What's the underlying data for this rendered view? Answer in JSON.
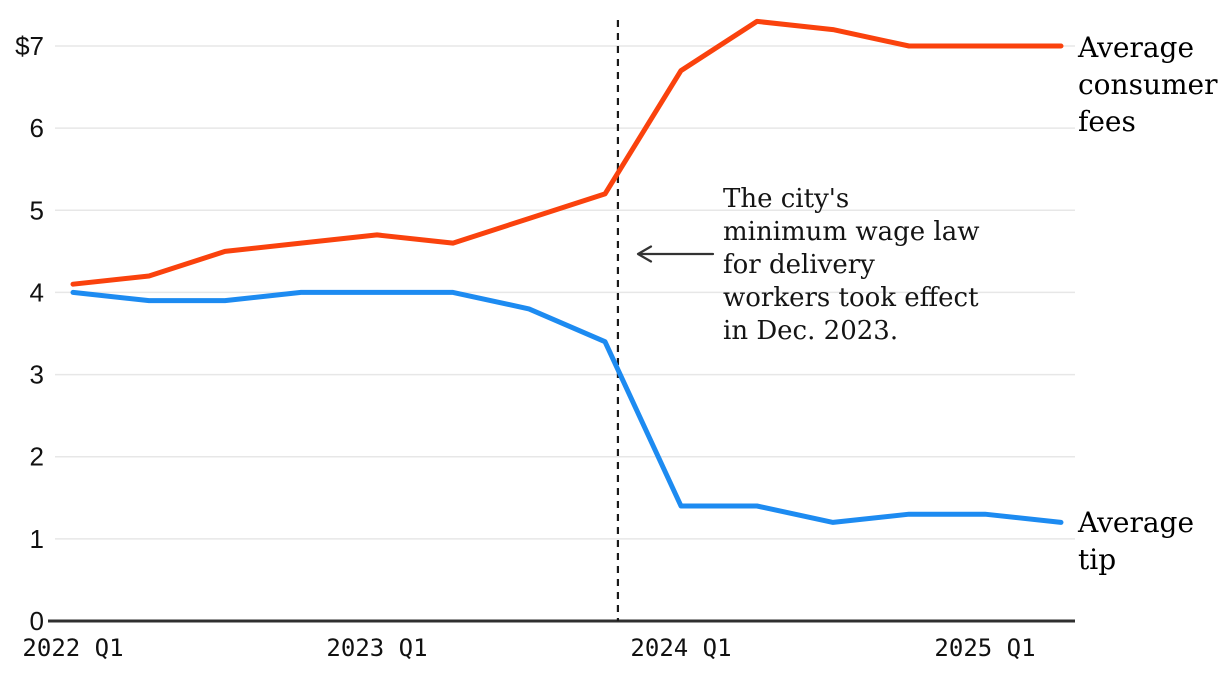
{
  "chart_data": {
    "type": "line",
    "title": "",
    "xlabel": "",
    "ylabel": "",
    "categories": [
      "2022 Q1",
      "2022 Q2",
      "2022 Q3",
      "2022 Q4",
      "2023 Q1",
      "2023 Q2",
      "2023 Q3",
      "2023 Q4",
      "2024 Q1",
      "2024 Q2",
      "2024 Q3",
      "2024 Q4",
      "2025 Q1",
      "2025 Q2"
    ],
    "series": [
      {
        "name": "Average consumer fees",
        "label_lines": "Average\nconsumer\nfees",
        "color": "#fa420d",
        "values": [
          4.1,
          4.2,
          4.5,
          4.6,
          4.7,
          4.6,
          4.9,
          5.2,
          6.7,
          7.3,
          7.2,
          7.0,
          7.0,
          7.0
        ]
      },
      {
        "name": "Average tip",
        "label_lines": "Average\ntip",
        "color": "#1d8bf1",
        "values": [
          4.0,
          3.9,
          3.9,
          4.0,
          4.0,
          4.0,
          3.8,
          3.4,
          1.4,
          1.4,
          1.2,
          1.3,
          1.3,
          1.2
        ]
      }
    ],
    "y_ticks": [
      {
        "value": 7,
        "label": "$7"
      },
      {
        "value": 6,
        "label": "6"
      },
      {
        "value": 5,
        "label": "5"
      },
      {
        "value": 4,
        "label": "4"
      },
      {
        "value": 3,
        "label": "3"
      },
      {
        "value": 2,
        "label": "2"
      },
      {
        "value": 1,
        "label": "1"
      },
      {
        "value": 0,
        "label": "0"
      }
    ],
    "x_ticks": [
      {
        "index": 0,
        "label": "2022 Q1"
      },
      {
        "index": 4,
        "label": "2023 Q1"
      },
      {
        "index": 8,
        "label": "2024 Q1"
      },
      {
        "index": 12,
        "label": "2025 Q1"
      }
    ],
    "ylim": [
      0,
      7.5
    ],
    "grid": true,
    "legend_position": "right-inline",
    "reference_line": {
      "x_index": 7.17,
      "style": "dashed",
      "event": "Dec. 2023"
    },
    "annotation": "The city's\nminimum wage law\nfor delivery\nworkers took effect\nin Dec. 2023."
  },
  "colors": {
    "grid": "#e7e7e7",
    "axis": "#2f2f2f",
    "dashed": "#1a1a1a",
    "arrow": "#333333",
    "tick_text": "#111111"
  }
}
